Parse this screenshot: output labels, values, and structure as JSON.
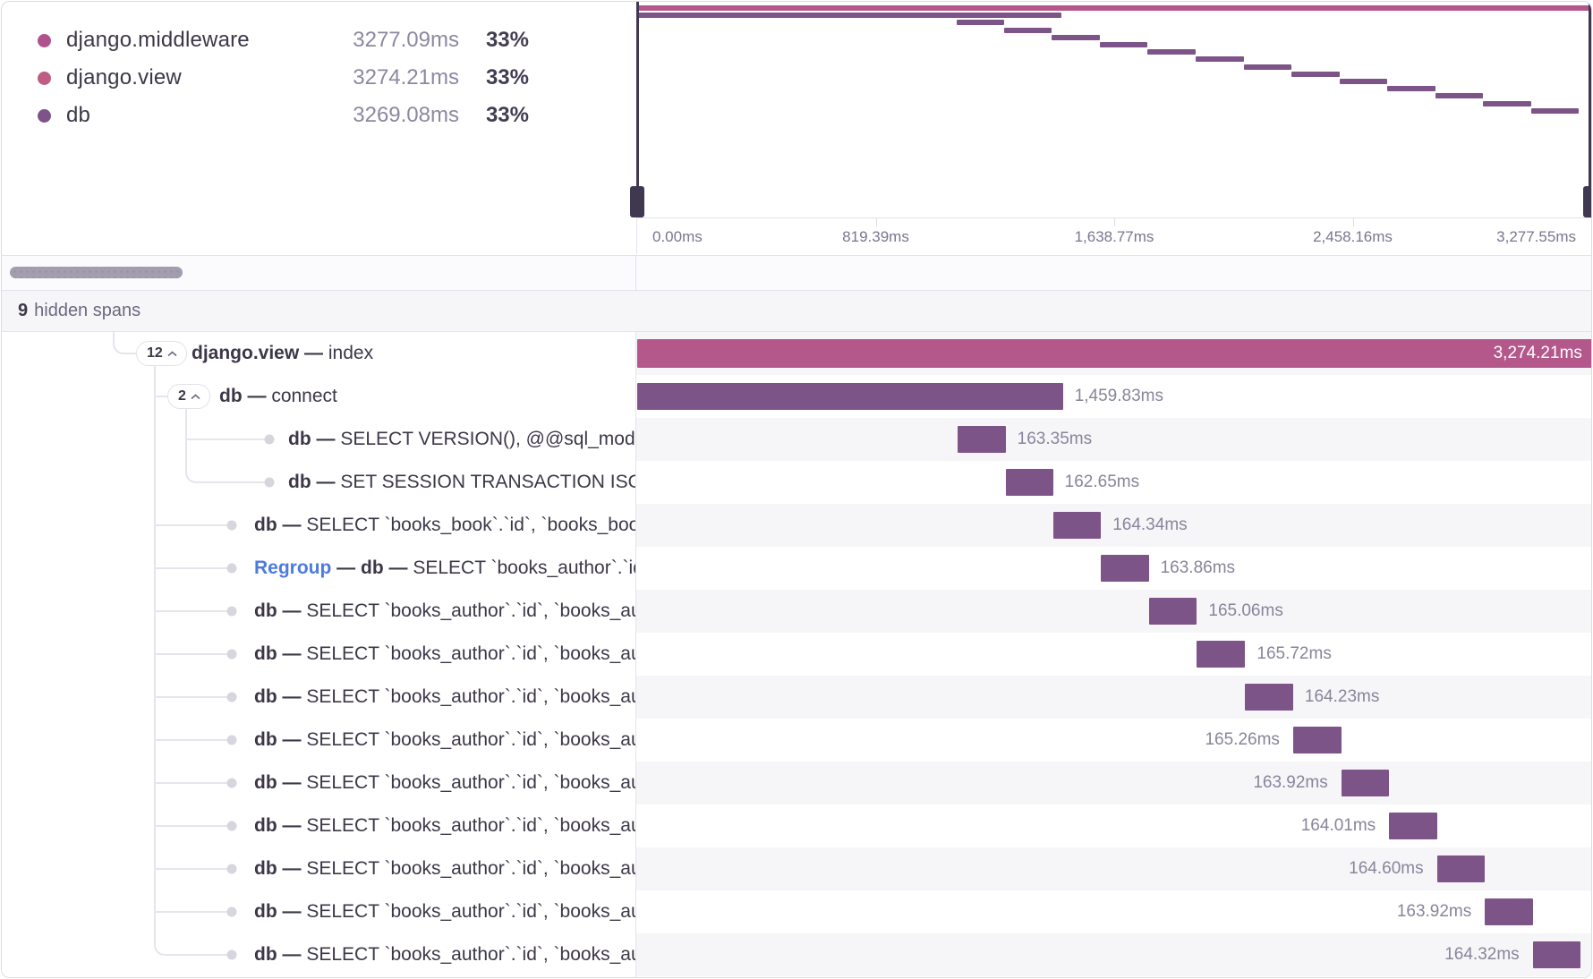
{
  "colors": {
    "pink": "#b4578b",
    "purple": "#7c5488",
    "handle": "#3f3850",
    "accent_blue": "#4c7be0",
    "row_alt": "#f6f6f9"
  },
  "legend": {
    "items": [
      {
        "name": "django.middleware",
        "duration": "3277.09ms",
        "percent": "33%",
        "color": "#b0538d"
      },
      {
        "name": "django.view",
        "duration": "3274.21ms",
        "percent": "33%",
        "color": "#bf5c83"
      },
      {
        "name": "db",
        "duration": "3269.08ms",
        "percent": "33%",
        "color": "#7d5389"
      }
    ]
  },
  "minimap": {
    "total_ms": 3277.55,
    "axis_ticks": [
      {
        "label": "0.00ms",
        "pct": 0,
        "align": "left"
      },
      {
        "label": "819.39ms",
        "pct": 25,
        "align": "center"
      },
      {
        "label": "1,638.77ms",
        "pct": 50,
        "align": "center"
      },
      {
        "label": "2,458.16ms",
        "pct": 75,
        "align": "center"
      },
      {
        "label": "3,277.55ms",
        "pct": 100,
        "align": "right"
      }
    ]
  },
  "hidden_spans": {
    "count": "9",
    "label": "hidden spans"
  },
  "spans": [
    {
      "tree": "pill-root",
      "pill": "12",
      "op": "django.view",
      "desc": "index",
      "start": 0,
      "dur": 3274.21,
      "label": "3,274.21ms",
      "color": "pink",
      "label_pos": "inside"
    },
    {
      "tree": "pill-child",
      "pill": "2",
      "op": "db",
      "desc": "connect",
      "start": 0,
      "dur": 1459.83,
      "label": "1,459.83ms",
      "color": "purple",
      "label_pos": "right"
    },
    {
      "tree": "dot-deep",
      "op": "db",
      "desc": "SELECT VERSION(), @@sql_mode, @@default_storage_engine",
      "start": 1100.0,
      "dur": 163.35,
      "label": "163.35ms",
      "color": "purple",
      "label_pos": "right"
    },
    {
      "tree": "dot-deep",
      "op": "db",
      "desc": "SET SESSION TRANSACTION ISOLATION LEVEL READ COMMITTED",
      "start": 1263.35,
      "dur": 162.65,
      "label": "162.65ms",
      "color": "purple",
      "label_pos": "right"
    },
    {
      "tree": "dot",
      "op": "db",
      "desc": "SELECT `books_book`.`id`, `books_book`.`title`, `books_book`.`author_id` FROM `books_book`",
      "start": 1426.0,
      "dur": 164.34,
      "label": "164.34ms",
      "color": "purple",
      "label_pos": "right"
    },
    {
      "tree": "dot",
      "prefix": "Regroup",
      "op": "db",
      "desc": "SELECT `books_author`.`id`, `books_author`.`name` FROM `books_author`",
      "start": 1590.34,
      "dur": 163.86,
      "label": "163.86ms",
      "color": "purple",
      "label_pos": "right"
    },
    {
      "tree": "dot",
      "op": "db",
      "desc": "SELECT `books_author`.`id`, `books_author`.`name` FROM `books_author` WHERE `books_author`.`id` = %s",
      "start": 1754.2,
      "dur": 165.06,
      "label": "165.06ms",
      "color": "purple",
      "label_pos": "right"
    },
    {
      "tree": "dot",
      "op": "db",
      "desc": "SELECT `books_author`.`id`, `books_author`.`name` FROM `books_author` WHERE `books_author`.`id` = %s",
      "start": 1919.26,
      "dur": 165.72,
      "label": "165.72ms",
      "color": "purple",
      "label_pos": "right"
    },
    {
      "tree": "dot",
      "op": "db",
      "desc": "SELECT `books_author`.`id`, `books_author`.`name` FROM `books_author` WHERE `books_author`.`id` = %s",
      "start": 2084.98,
      "dur": 164.23,
      "label": "164.23ms",
      "color": "purple",
      "label_pos": "right"
    },
    {
      "tree": "dot",
      "op": "db",
      "desc": "SELECT `books_author`.`id`, `books_author`.`name` FROM `books_author` WHERE `books_author`.`id` = %s",
      "start": 2249.21,
      "dur": 165.26,
      "label": "165.26ms",
      "color": "purple",
      "label_pos": "left"
    },
    {
      "tree": "dot",
      "op": "db",
      "desc": "SELECT `books_author`.`id`, `books_author`.`name` FROM `books_author` WHERE `books_author`.`id` = %s",
      "start": 2414.47,
      "dur": 163.92,
      "label": "163.92ms",
      "color": "purple",
      "label_pos": "left"
    },
    {
      "tree": "dot",
      "op": "db",
      "desc": "SELECT `books_author`.`id`, `books_author`.`name` FROM `books_author` WHERE `books_author`.`id` = %s",
      "start": 2578.39,
      "dur": 164.01,
      "label": "164.01ms",
      "color": "purple",
      "label_pos": "left"
    },
    {
      "tree": "dot",
      "op": "db",
      "desc": "SELECT `books_author`.`id`, `books_author`.`name` FROM `books_author` WHERE `books_author`.`id` = %s",
      "start": 2742.4,
      "dur": 164.6,
      "label": "164.60ms",
      "color": "purple",
      "label_pos": "left"
    },
    {
      "tree": "dot",
      "op": "db",
      "desc": "SELECT `books_author`.`id`, `books_author`.`name` FROM `books_author` WHERE `books_author`.`id` = %s",
      "start": 2907.0,
      "dur": 163.92,
      "label": "163.92ms",
      "color": "purple",
      "label_pos": "left"
    },
    {
      "tree": "dot",
      "op": "db",
      "desc": "SELECT `books_author`.`id`, `books_author`.`name` FROM `books_author` WHERE `books_author`.`id` = %s",
      "start": 3070.92,
      "dur": 164.32,
      "label": "164.32ms",
      "color": "purple",
      "label_pos": "left"
    }
  ]
}
